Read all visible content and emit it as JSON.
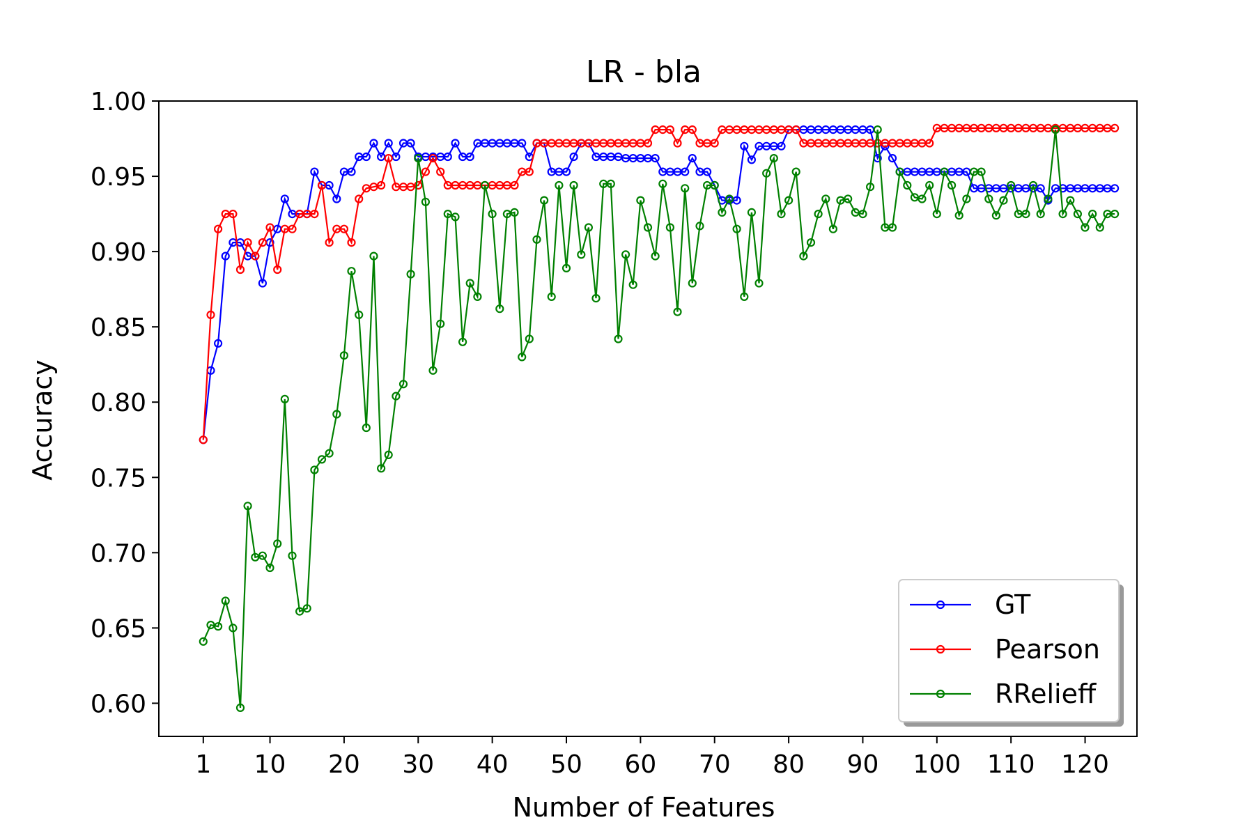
{
  "chart_data": {
    "type": "line",
    "title": "LR - bla",
    "xlabel": "Number of Features",
    "ylabel": "Accuracy",
    "xlim": [
      -5,
      127
    ],
    "ylim": [
      0.578,
      1.0
    ],
    "xticks": [
      1,
      10,
      20,
      30,
      40,
      50,
      60,
      70,
      80,
      90,
      100,
      110,
      120
    ],
    "yticks": [
      0.6,
      0.65,
      0.7,
      0.75,
      0.8,
      0.85,
      0.9,
      0.95,
      1.0
    ],
    "ytick_labels": [
      "0.60",
      "0.65",
      "0.70",
      "0.75",
      "0.80",
      "0.85",
      "0.90",
      "0.95",
      "1.00"
    ],
    "grid": false,
    "legend_position": "lower-right",
    "x": [
      1,
      2,
      3,
      4,
      5,
      6,
      7,
      8,
      9,
      10,
      11,
      12,
      13,
      14,
      15,
      16,
      17,
      18,
      19,
      20,
      21,
      22,
      23,
      24,
      25,
      26,
      27,
      28,
      29,
      30,
      31,
      32,
      33,
      34,
      35,
      36,
      37,
      38,
      39,
      40,
      41,
      42,
      43,
      44,
      45,
      46,
      47,
      48,
      49,
      50,
      51,
      52,
      53,
      54,
      55,
      56,
      57,
      58,
      59,
      60,
      61,
      62,
      63,
      64,
      65,
      66,
      67,
      68,
      69,
      70,
      71,
      72,
      73,
      74,
      75,
      76,
      77,
      78,
      79,
      80,
      81,
      82,
      83,
      84,
      85,
      86,
      87,
      88,
      89,
      90,
      91,
      92,
      93,
      94,
      95,
      96,
      97,
      98,
      99,
      100,
      101,
      102,
      103,
      104,
      105,
      106,
      107,
      108,
      109,
      110,
      111,
      112,
      113,
      114,
      115,
      116,
      117,
      118,
      119,
      120,
      121,
      122,
      123,
      124
    ],
    "series": [
      {
        "name": "GT",
        "color": "#0000ff",
        "values": [
          0.775,
          0.821,
          0.839,
          0.897,
          0.906,
          0.906,
          0.897,
          0.897,
          0.879,
          0.906,
          0.915,
          0.935,
          0.925,
          0.925,
          0.925,
          0.953,
          0.944,
          0.944,
          0.935,
          0.953,
          0.953,
          0.963,
          0.963,
          0.972,
          0.963,
          0.972,
          0.963,
          0.972,
          0.972,
          0.963,
          0.963,
          0.963,
          0.963,
          0.963,
          0.972,
          0.963,
          0.963,
          0.972,
          0.972,
          0.972,
          0.972,
          0.972,
          0.972,
          0.972,
          0.963,
          0.972,
          0.972,
          0.953,
          0.953,
          0.953,
          0.963,
          0.972,
          0.972,
          0.963,
          0.963,
          0.963,
          0.963,
          0.962,
          0.962,
          0.962,
          0.962,
          0.962,
          0.953,
          0.953,
          0.953,
          0.953,
          0.962,
          0.953,
          0.953,
          0.944,
          0.934,
          0.934,
          0.934,
          0.97,
          0.961,
          0.97,
          0.97,
          0.97,
          0.97,
          0.981,
          0.981,
          0.981,
          0.981,
          0.981,
          0.981,
          0.981,
          0.981,
          0.981,
          0.981,
          0.981,
          0.981,
          0.962,
          0.97,
          0.962,
          0.953,
          0.953,
          0.953,
          0.953,
          0.953,
          0.953,
          0.953,
          0.953,
          0.953,
          0.953,
          0.942,
          0.942,
          0.942,
          0.942,
          0.942,
          0.942,
          0.942,
          0.942,
          0.942,
          0.942,
          0.934,
          0.942,
          0.942,
          0.942,
          0.942,
          0.942,
          0.942,
          0.942,
          0.942,
          0.942
        ]
      },
      {
        "name": "Pearson",
        "color": "#ff0000",
        "values": [
          0.775,
          0.858,
          0.915,
          0.925,
          0.925,
          0.888,
          0.906,
          0.897,
          0.906,
          0.916,
          0.888,
          0.915,
          0.915,
          0.925,
          0.925,
          0.925,
          0.944,
          0.906,
          0.915,
          0.915,
          0.906,
          0.935,
          0.942,
          0.943,
          0.944,
          0.962,
          0.943,
          0.943,
          0.943,
          0.944,
          0.953,
          0.962,
          0.953,
          0.944,
          0.944,
          0.944,
          0.944,
          0.944,
          0.944,
          0.944,
          0.944,
          0.944,
          0.944,
          0.953,
          0.953,
          0.972,
          0.972,
          0.972,
          0.972,
          0.972,
          0.972,
          0.972,
          0.972,
          0.972,
          0.972,
          0.972,
          0.972,
          0.972,
          0.972,
          0.972,
          0.972,
          0.981,
          0.981,
          0.981,
          0.972,
          0.981,
          0.981,
          0.972,
          0.972,
          0.972,
          0.981,
          0.981,
          0.981,
          0.981,
          0.981,
          0.981,
          0.981,
          0.981,
          0.981,
          0.981,
          0.981,
          0.972,
          0.972,
          0.972,
          0.972,
          0.972,
          0.972,
          0.972,
          0.972,
          0.972,
          0.972,
          0.972,
          0.972,
          0.972,
          0.972,
          0.972,
          0.972,
          0.972,
          0.972,
          0.982,
          0.982,
          0.982,
          0.982,
          0.982,
          0.982,
          0.982,
          0.982,
          0.982,
          0.982,
          0.982,
          0.982,
          0.982,
          0.982,
          0.982,
          0.982,
          0.982,
          0.982,
          0.982,
          0.982,
          0.982,
          0.982,
          0.982,
          0.982,
          0.982
        ]
      },
      {
        "name": "RRelieff",
        "color": "#008000",
        "values": [
          0.641,
          0.652,
          0.651,
          0.668,
          0.65,
          0.597,
          0.731,
          0.697,
          0.698,
          0.69,
          0.706,
          0.802,
          0.698,
          0.661,
          0.663,
          0.755,
          0.762,
          0.766,
          0.792,
          0.831,
          0.887,
          0.858,
          0.783,
          0.897,
          0.756,
          0.765,
          0.804,
          0.812,
          0.885,
          0.962,
          0.933,
          0.821,
          0.852,
          0.925,
          0.923,
          0.84,
          0.879,
          0.87,
          0.944,
          0.925,
          0.862,
          0.925,
          0.926,
          0.83,
          0.842,
          0.908,
          0.934,
          0.87,
          0.944,
          0.889,
          0.944,
          0.898,
          0.916,
          0.869,
          0.945,
          0.945,
          0.842,
          0.898,
          0.878,
          0.934,
          0.916,
          0.897,
          0.945,
          0.916,
          0.86,
          0.942,
          0.879,
          0.917,
          0.944,
          0.944,
          0.926,
          0.935,
          0.915,
          0.87,
          0.926,
          0.879,
          0.952,
          0.962,
          0.925,
          0.934,
          0.953,
          0.897,
          0.906,
          0.925,
          0.935,
          0.915,
          0.934,
          0.935,
          0.926,
          0.925,
          0.943,
          0.981,
          0.916,
          0.916,
          0.953,
          0.944,
          0.936,
          0.935,
          0.944,
          0.925,
          0.953,
          0.944,
          0.924,
          0.935,
          0.953,
          0.953,
          0.935,
          0.924,
          0.934,
          0.944,
          0.925,
          0.925,
          0.944,
          0.925,
          0.935,
          0.981,
          0.925,
          0.934,
          0.925,
          0.916,
          0.925,
          0.916,
          0.925,
          0.925
        ]
      }
    ]
  }
}
